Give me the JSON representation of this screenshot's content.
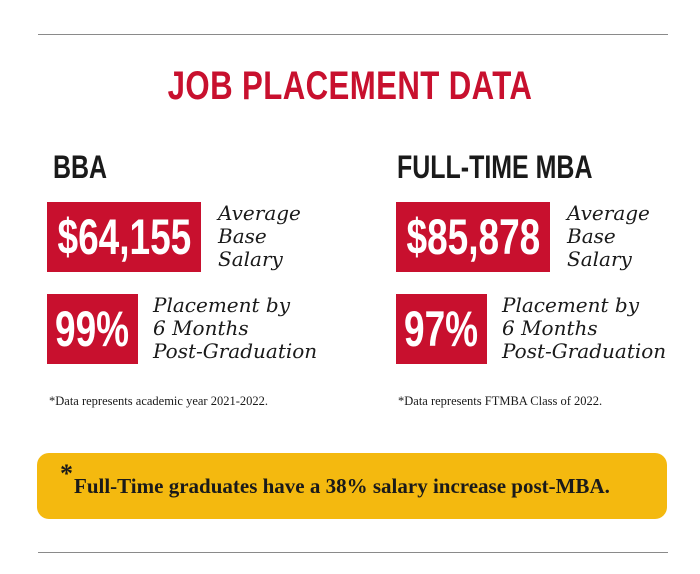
{
  "title": "JOB PLACEMENT DATA",
  "colors": {
    "accent_red": "#c8102e",
    "banner_yellow": "#f4b90f",
    "text_dark": "#1a1a1a",
    "rule_gray": "#8a8a8a"
  },
  "bba": {
    "heading": "BBA",
    "salary": {
      "value": "$64,155",
      "label_lines": [
        "Average",
        "Base",
        "Salary"
      ]
    },
    "placement": {
      "value": "99%",
      "label_lines": [
        "Placement by",
        "6 Months",
        "Post-Graduation"
      ]
    },
    "note": "*Data represents academic year 2021-2022."
  },
  "mba": {
    "heading": "FULL-TIME MBA",
    "salary": {
      "value": "$85,878",
      "label_lines": [
        "Average",
        "Base",
        "Salary"
      ]
    },
    "placement": {
      "value": "97%",
      "label_lines": [
        "Placement by",
        "6 Months",
        "Post-Graduation"
      ]
    },
    "note": "*Data represents FTMBA Class of 2022."
  },
  "banner": {
    "asterisk": "*",
    "text": "Full-Time graduates have a 38% salary increase post-MBA."
  }
}
